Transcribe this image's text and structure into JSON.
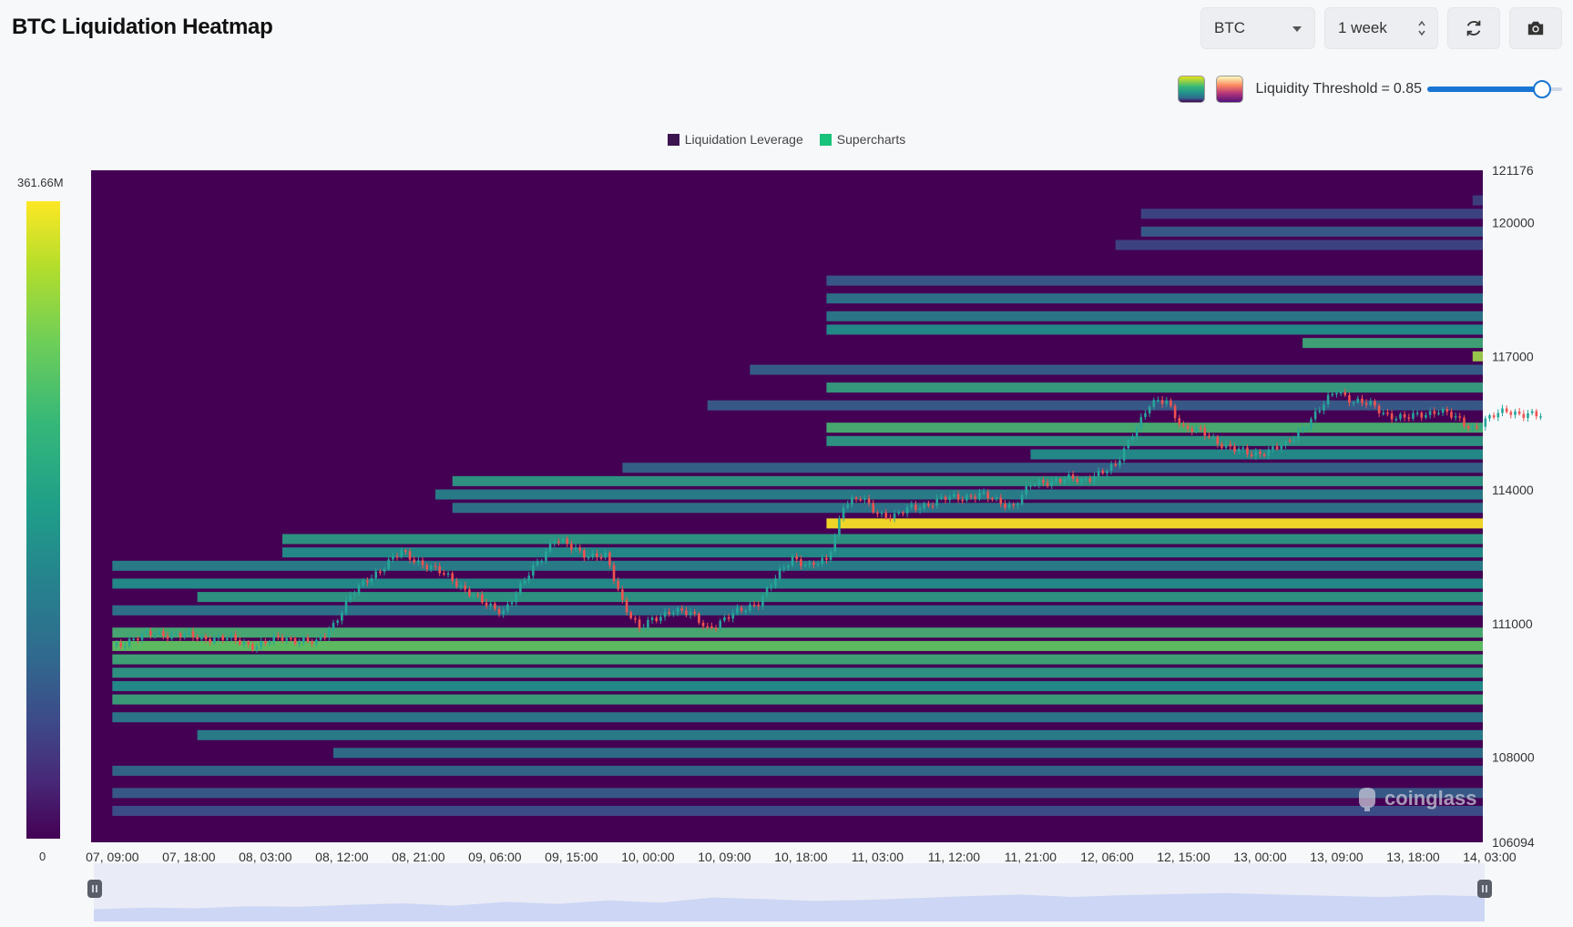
{
  "header": {
    "title": "BTC Liquidation Heatmap"
  },
  "toolbar": {
    "coin": "BTC",
    "range": "1 week",
    "refresh_icon": "refresh-icon",
    "screenshot_icon": "camera-icon"
  },
  "threshold": {
    "label": "Liquidity Threshold",
    "equals": "=",
    "value": "0.85",
    "fraction": 0.85,
    "palettes": [
      "viridis",
      "magma"
    ]
  },
  "colors": {
    "accent": "#1976d2",
    "up": "#26a69a",
    "down": "#ef5350",
    "bg": "#440154"
  },
  "chart_data": {
    "type": "heatmap",
    "title": "BTC Liquidation Heatmap",
    "legend": [
      {
        "name": "Liquidation Leverage",
        "color": "#3b1450"
      },
      {
        "name": "Supercharts",
        "color": "#17c27a"
      }
    ],
    "colorbar": {
      "max_label": "361.66M",
      "min_label": "0",
      "max": 361.66,
      "min": 0,
      "unit": "M"
    },
    "x_tick_labels": [
      "07, 09:00",
      "07, 18:00",
      "08, 03:00",
      "08, 12:00",
      "08, 21:00",
      "09, 06:00",
      "09, 15:00",
      "10, 00:00",
      "10, 09:00",
      "10, 18:00",
      "11, 03:00",
      "11, 12:00",
      "11, 21:00",
      "12, 06:00",
      "12, 15:00",
      "13, 00:00",
      "13, 09:00",
      "13, 18:00",
      "14, 03:00"
    ],
    "y_tick_labels": [
      "121176",
      "120000",
      "117000",
      "114000",
      "111000",
      "108000",
      "106094"
    ],
    "ylim": [
      106094,
      121176
    ],
    "x_hours_range": [
      -2.5,
      161.2
    ],
    "price_path": [
      [
        0,
        110500
      ],
      [
        5,
        110800
      ],
      [
        10,
        110700
      ],
      [
        14,
        110650
      ],
      [
        17,
        110500
      ],
      [
        20,
        110700
      ],
      [
        24,
        110550
      ],
      [
        26,
        111000
      ],
      [
        28,
        111600
      ],
      [
        30,
        112000
      ],
      [
        32,
        112300
      ],
      [
        34,
        112600
      ],
      [
        36,
        112400
      ],
      [
        38,
        112200
      ],
      [
        40,
        112000
      ],
      [
        42,
        111700
      ],
      [
        44,
        111400
      ],
      [
        46,
        111300
      ],
      [
        48,
        111800
      ],
      [
        50,
        112400
      ],
      [
        52,
        112900
      ],
      [
        54,
        112700
      ],
      [
        56,
        112550
      ],
      [
        58,
        112500
      ],
      [
        60,
        111500
      ],
      [
        62,
        110900
      ],
      [
        64,
        111100
      ],
      [
        66,
        111350
      ],
      [
        68,
        111200
      ],
      [
        70,
        110900
      ],
      [
        72,
        111100
      ],
      [
        74,
        111300
      ],
      [
        76,
        111500
      ],
      [
        78,
        112000
      ],
      [
        80,
        112500
      ],
      [
        82,
        112300
      ],
      [
        84,
        112400
      ],
      [
        85,
        113000
      ],
      [
        86,
        113700
      ],
      [
        88,
        113800
      ],
      [
        90,
        113500
      ],
      [
        92,
        113400
      ],
      [
        94,
        113600
      ],
      [
        96,
        113700
      ],
      [
        98,
        113800
      ],
      [
        100,
        113850
      ],
      [
        102,
        113900
      ],
      [
        104,
        113750
      ],
      [
        106,
        113650
      ],
      [
        108,
        114100
      ],
      [
        110,
        114200
      ],
      [
        112,
        114250
      ],
      [
        114,
        114200
      ],
      [
        116,
        114400
      ],
      [
        118,
        114500
      ],
      [
        120,
        115300
      ],
      [
        122,
        115900
      ],
      [
        124,
        116000
      ],
      [
        126,
        115400
      ],
      [
        128,
        115300
      ],
      [
        130,
        115100
      ],
      [
        132,
        114900
      ],
      [
        134,
        114800
      ],
      [
        136,
        114900
      ],
      [
        138,
        115000
      ],
      [
        140,
        115400
      ],
      [
        142,
        115800
      ],
      [
        144,
        116250
      ],
      [
        146,
        116000
      ],
      [
        148,
        115900
      ],
      [
        150,
        115700
      ],
      [
        152,
        115600
      ],
      [
        154,
        115700
      ],
      [
        156,
        115800
      ],
      [
        158,
        115600
      ],
      [
        160,
        115400
      ],
      [
        162,
        115600
      ],
      [
        164,
        115800
      ],
      [
        166,
        115700
      ],
      [
        168,
        115650
      ]
    ],
    "liquidity_bands": [
      {
        "price": 121000,
        "start_h": 164,
        "intensity": 0.15
      },
      {
        "price": 120500,
        "start_h": 160,
        "intensity": 0.2
      },
      {
        "price": 120200,
        "start_h": 121,
        "intensity": 0.22
      },
      {
        "price": 119800,
        "start_h": 121,
        "intensity": 0.3
      },
      {
        "price": 119500,
        "start_h": 118,
        "intensity": 0.22
      },
      {
        "price": 118700,
        "start_h": 84,
        "intensity": 0.3
      },
      {
        "price": 118300,
        "start_h": 84,
        "intensity": 0.4
      },
      {
        "price": 117900,
        "start_h": 84,
        "intensity": 0.42
      },
      {
        "price": 117600,
        "start_h": 84,
        "intensity": 0.5
      },
      {
        "price": 117300,
        "start_h": 140,
        "intensity": 0.62
      },
      {
        "price": 117000,
        "start_h": 160,
        "intensity": 0.85
      },
      {
        "price": 116700,
        "start_h": 75,
        "intensity": 0.32
      },
      {
        "price": 116300,
        "start_h": 84,
        "intensity": 0.58
      },
      {
        "price": 115900,
        "start_h": 70,
        "intensity": 0.3
      },
      {
        "price": 115400,
        "start_h": 84,
        "intensity": 0.66
      },
      {
        "price": 115100,
        "start_h": 84,
        "intensity": 0.55
      },
      {
        "price": 114800,
        "start_h": 108,
        "intensity": 0.5
      },
      {
        "price": 114500,
        "start_h": 60,
        "intensity": 0.33
      },
      {
        "price": 114200,
        "start_h": 40,
        "intensity": 0.55
      },
      {
        "price": 113900,
        "start_h": 38,
        "intensity": 0.45
      },
      {
        "price": 113600,
        "start_h": 40,
        "intensity": 0.4
      },
      {
        "price": 113250,
        "start_h": 84,
        "intensity": 1.0
      },
      {
        "price": 112900,
        "start_h": 20,
        "intensity": 0.55
      },
      {
        "price": 112600,
        "start_h": 20,
        "intensity": 0.5
      },
      {
        "price": 112300,
        "start_h": 0,
        "intensity": 0.45
      },
      {
        "price": 111900,
        "start_h": 0,
        "intensity": 0.5
      },
      {
        "price": 111600,
        "start_h": 10,
        "intensity": 0.55
      },
      {
        "price": 111300,
        "start_h": 0,
        "intensity": 0.4
      },
      {
        "price": 110800,
        "start_h": 0,
        "intensity": 0.65
      },
      {
        "price": 110500,
        "start_h": 0,
        "intensity": 0.75
      },
      {
        "price": 110200,
        "start_h": 0,
        "intensity": 0.62
      },
      {
        "price": 109900,
        "start_h": 0,
        "intensity": 0.55
      },
      {
        "price": 109600,
        "start_h": 0,
        "intensity": 0.5
      },
      {
        "price": 109300,
        "start_h": 0,
        "intensity": 0.6
      },
      {
        "price": 108900,
        "start_h": 0,
        "intensity": 0.42
      },
      {
        "price": 108500,
        "start_h": 10,
        "intensity": 0.45
      },
      {
        "price": 108100,
        "start_h": 26,
        "intensity": 0.38
      },
      {
        "price": 107700,
        "start_h": 0,
        "intensity": 0.35
      },
      {
        "price": 107200,
        "start_h": 0,
        "intensity": 0.3
      },
      {
        "price": 106800,
        "start_h": 0,
        "intensity": 0.25
      }
    ],
    "navigator_profile": [
      0.3,
      0.35,
      0.33,
      0.4,
      0.38,
      0.45,
      0.5,
      0.42,
      0.55,
      0.48,
      0.6,
      0.52,
      0.7,
      0.65,
      0.58,
      0.62,
      0.68,
      0.75,
      0.8,
      0.72,
      0.78,
      0.82,
      0.85,
      0.8,
      0.76,
      0.72,
      0.78,
      0.74
    ]
  },
  "watermark": "coinglass"
}
